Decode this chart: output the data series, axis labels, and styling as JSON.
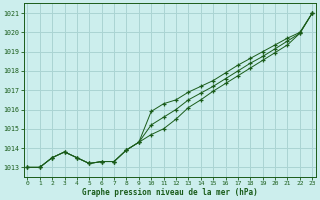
{
  "x": [
    0,
    1,
    2,
    3,
    4,
    5,
    6,
    7,
    8,
    9,
    10,
    11,
    12,
    13,
    14,
    15,
    16,
    17,
    18,
    19,
    20,
    21,
    22,
    23
  ],
  "line1": [
    1013.0,
    1013.0,
    1013.5,
    1013.8,
    1013.5,
    1013.2,
    1013.3,
    1013.3,
    1013.9,
    1014.3,
    1015.9,
    1016.3,
    1016.5,
    1016.9,
    1017.2,
    1017.5,
    1017.9,
    1018.3,
    1018.65,
    1019.0,
    1019.35,
    1019.7,
    1020.0,
    1021.0
  ],
  "line2": [
    1013.0,
    1013.0,
    1013.5,
    1013.8,
    1013.5,
    1013.2,
    1013.3,
    1013.3,
    1013.9,
    1014.3,
    1014.7,
    1015.0,
    1015.5,
    1016.1,
    1016.5,
    1016.95,
    1017.35,
    1017.75,
    1018.15,
    1018.55,
    1018.95,
    1019.35,
    1019.95,
    1021.0
  ],
  "line3": [
    1013.0,
    1013.0,
    1013.5,
    1013.8,
    1013.5,
    1013.2,
    1013.3,
    1013.3,
    1013.9,
    1014.3,
    1015.2,
    1015.6,
    1016.0,
    1016.5,
    1016.85,
    1017.2,
    1017.6,
    1018.0,
    1018.4,
    1018.75,
    1019.15,
    1019.55,
    1019.95,
    1021.0
  ],
  "bg_color": "#cceeed",
  "grid_color": "#aad4d3",
  "line_color": "#1a5c1a",
  "xlabel": "Graphe pression niveau de la mer (hPa)",
  "ylim": [
    1012.5,
    1021.5
  ],
  "xlim": [
    -0.3,
    23.3
  ],
  "yticks": [
    1013,
    1014,
    1015,
    1016,
    1017,
    1018,
    1019,
    1020,
    1021
  ],
  "xticks": [
    0,
    1,
    2,
    3,
    4,
    5,
    6,
    7,
    8,
    9,
    10,
    11,
    12,
    13,
    14,
    15,
    16,
    17,
    18,
    19,
    20,
    21,
    22,
    23
  ]
}
